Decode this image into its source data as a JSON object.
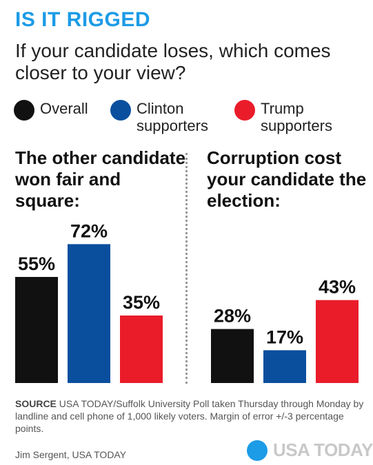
{
  "kicker": "IS IT RIGGED",
  "question": "If your candidate loses, which comes closer to your view?",
  "legend": [
    {
      "label": "Overall",
      "color": "#111111"
    },
    {
      "label": "Clinton supporters",
      "color": "#0a4f9e"
    },
    {
      "label": "Trump supporters",
      "color": "#ea1c2a"
    }
  ],
  "chart_data": [
    {
      "type": "bar",
      "title": "The other candidate won fair and square:",
      "categories": [
        "Overall",
        "Clinton supporters",
        "Trump supporters"
      ],
      "values": [
        55,
        72,
        35
      ],
      "value_labels": [
        "55%",
        "72%",
        "35%"
      ],
      "colors": [
        "#111111",
        "#0a4f9e",
        "#ea1c2a"
      ],
      "ylim": [
        0,
        100
      ],
      "unit": "%"
    },
    {
      "type": "bar",
      "title": "Corruption cost your candidate the election:",
      "categories": [
        "Overall",
        "Clinton supporters",
        "Trump supporters"
      ],
      "values": [
        28,
        17,
        43
      ],
      "value_labels": [
        "28%",
        "17%",
        "43%"
      ],
      "colors": [
        "#111111",
        "#0a4f9e",
        "#ea1c2a"
      ],
      "ylim": [
        0,
        100
      ],
      "unit": "%"
    }
  ],
  "source": {
    "label": "SOURCE",
    "text": "USA TODAY/Suffolk University Poll taken Thursday through Monday by landline and cell phone of 1,000 likely voters. Margin of error +/-3 percentage points."
  },
  "credit": "Jim Sergent, USA TODAY",
  "brand": {
    "name": "USA TODAY",
    "color": "#1c9be6"
  }
}
